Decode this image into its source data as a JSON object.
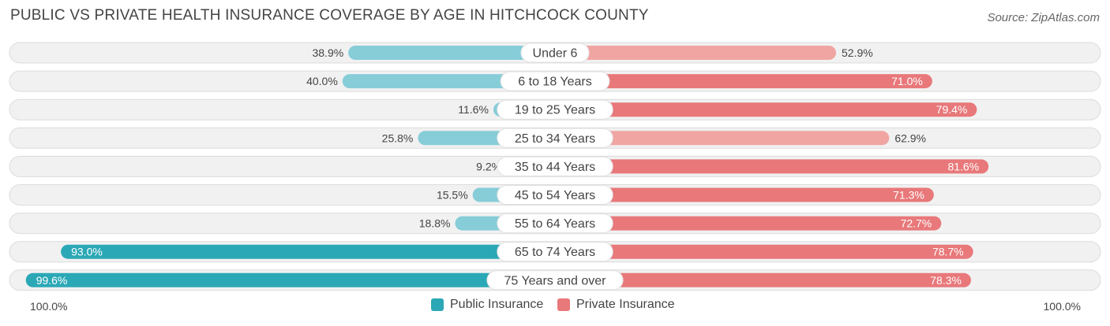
{
  "title": "PUBLIC VS PRIVATE HEALTH INSURANCE COVERAGE BY AGE IN HITCHCOCK COUNTY",
  "source": "Source: ZipAtlas.com",
  "axis": {
    "left_label": "100.0%",
    "right_label": "100.0%"
  },
  "colors": {
    "public_light": "#86cdd8",
    "public_dark": "#2ba8b6",
    "private_light": "#f0a5a3",
    "private_dark": "#e8787a",
    "row_bg": "#f1f1f1",
    "row_border": "#dcdcdc"
  },
  "chart_data": {
    "type": "bar",
    "orientation": "horizontal-diverging",
    "categories": [
      "Under 6",
      "6 to 18 Years",
      "19 to 25 Years",
      "25 to 34 Years",
      "35 to 44 Years",
      "45 to 54 Years",
      "55 to 64 Years",
      "65 to 74 Years",
      "75 Years and over"
    ],
    "series": [
      {
        "name": "Public Insurance",
        "values": [
          38.9,
          40.0,
          11.6,
          25.8,
          9.2,
          15.5,
          18.8,
          93.0,
          99.6
        ],
        "labels": [
          "38.9%",
          "40.0%",
          "11.6%",
          "25.8%",
          "9.2%",
          "15.5%",
          "18.8%",
          "93.0%",
          "99.6%"
        ]
      },
      {
        "name": "Private Insurance",
        "values": [
          52.9,
          71.0,
          79.4,
          62.9,
          81.6,
          71.3,
          72.7,
          78.7,
          78.3
        ],
        "labels": [
          "52.9%",
          "71.0%",
          "79.4%",
          "62.9%",
          "81.6%",
          "71.3%",
          "72.7%",
          "78.7%",
          "78.3%"
        ]
      }
    ],
    "xlim": [
      0,
      100
    ],
    "legend_position": "bottom-center"
  }
}
